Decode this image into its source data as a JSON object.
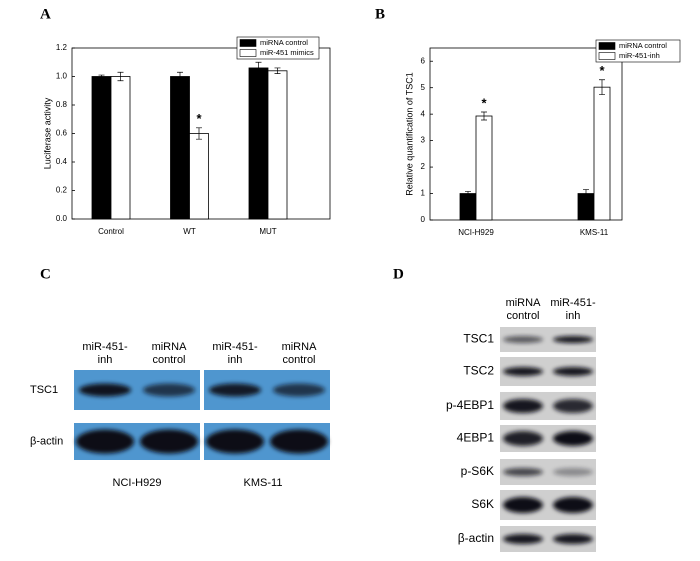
{
  "chart_data": [
    {
      "type": "bar",
      "panel_label": "A",
      "y_label": "Luciferase activity",
      "categories": [
        "Control",
        "WT",
        "MUT"
      ],
      "series": [
        {
          "name": "miRNA control",
          "color": "#000000",
          "values": [
            1.0,
            1.0,
            1.06
          ],
          "errors": [
            0.01,
            0.03,
            0.04
          ]
        },
        {
          "name": "miR-451 mimics",
          "color": "#ffffff",
          "values": [
            1.0,
            0.6,
            1.04
          ],
          "errors": [
            0.03,
            0.04,
            0.02
          ],
          "annotations": [
            null,
            "*",
            null
          ]
        }
      ],
      "ylim": [
        0,
        1.2
      ],
      "yticks": [
        {
          "value": 0,
          "label": "0.0"
        },
        0.2,
        0.4,
        0.6,
        0.8,
        {
          "value": 1,
          "label": "1.0"
        },
        1.2
      ],
      "legend": "upper right"
    },
    {
      "type": "bar",
      "panel_label": "B",
      "y_label": "Relative quantification of  TSC1",
      "categories": [
        "NCI-H929",
        "KMS-11"
      ],
      "series": [
        {
          "name": "miRNA control",
          "color": "#000000",
          "values": [
            1.0,
            1.0
          ],
          "errors": [
            0.08,
            0.15
          ]
        },
        {
          "name": "miR-451-inh",
          "color": "#ffffff",
          "values": [
            3.93,
            5.02
          ],
          "errors": [
            0.15,
            0.28
          ],
          "annotations": [
            "*",
            "*"
          ]
        }
      ],
      "ylim": [
        0,
        6.5
      ],
      "yticks": [
        0,
        1,
        2,
        3,
        4,
        5,
        6
      ],
      "legend": "upper right"
    }
  ],
  "panel_c": {
    "label": "C",
    "lanes": [
      [
        "miR-451-",
        "inh"
      ],
      [
        "miRNA",
        "control"
      ]
    ],
    "rows": [
      "TSC1",
      "β-actin"
    ],
    "cell_lines": [
      "NCI-H929",
      "KMS-11"
    ]
  },
  "panel_d": {
    "label": "D",
    "lanes": [
      [
        "miRNA",
        "control"
      ],
      [
        "miR-451-",
        "inh"
      ]
    ],
    "rows": [
      "TSC1",
      "TSC2",
      "p-4EBP1",
      "4EBP1",
      "p-S6K",
      "S6K",
      "β-actin"
    ]
  }
}
